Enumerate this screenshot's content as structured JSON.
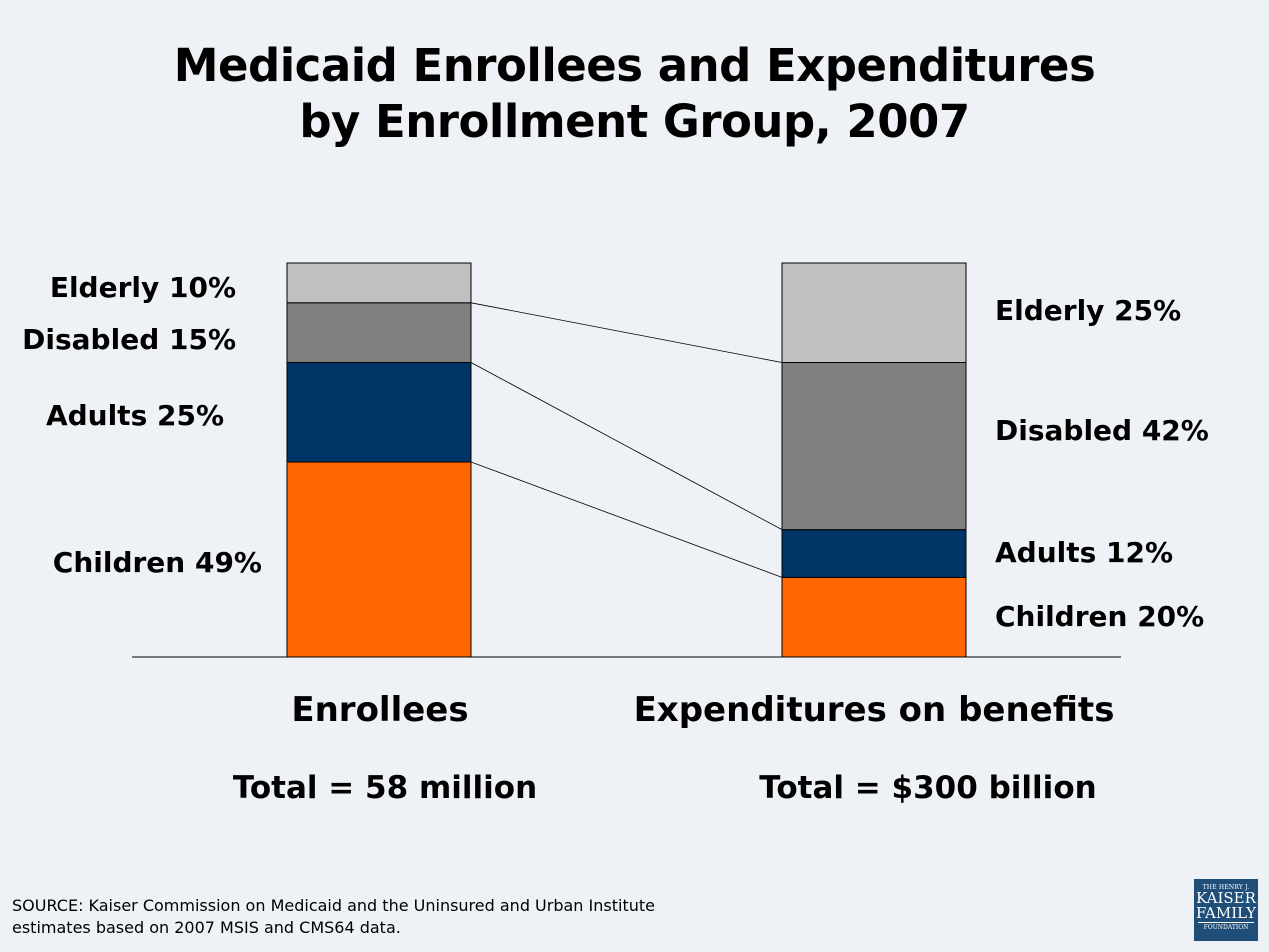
{
  "title_line1": "Medicaid Enrollees and Expenditures",
  "title_line2": "by Enrollment Group, 2007",
  "chart_data": {
    "type": "bar",
    "subtype": "stacked-100-percent",
    "title": "Medicaid Enrollees and Expenditures by Enrollment Group, 2007",
    "categories": [
      "Enrollees",
      "Expenditures on benefits"
    ],
    "stack_order_bottom_to_top": [
      "Children",
      "Adults",
      "Disabled",
      "Elderly"
    ],
    "series": [
      {
        "name": "Children",
        "values": [
          49,
          20
        ],
        "color": "#FF6600",
        "labels": [
          "Children 49%",
          "Children 20%"
        ]
      },
      {
        "name": "Adults",
        "values": [
          25,
          12
        ],
        "color": "#003366",
        "labels": [
          "Adults 25%",
          "Adults 12%"
        ]
      },
      {
        "name": "Disabled",
        "values": [
          15,
          42
        ],
        "color": "#808080",
        "labels": [
          "Disabled 15%",
          "Disabled 42%"
        ]
      },
      {
        "name": "Elderly",
        "values": [
          10,
          25
        ],
        "color": "#C0C0C0",
        "labels": [
          "Elderly 10%",
          "Elderly 25%"
        ]
      }
    ],
    "ylim": [
      0,
      100
    ],
    "unit": "%",
    "connector_lines": true,
    "totals": [
      "Total = 58 million",
      "Total = $300 billion"
    ],
    "xlabel": "",
    "ylabel": "",
    "grid": false,
    "legend": "none"
  },
  "source": {
    "line1": "SOURCE: Kaiser Commission on Medicaid and the Uninsured and Urban Institute",
    "line2": "estimates based on 2007 MSIS and CMS64 data."
  },
  "logo": {
    "line1": "THE HENRY J.",
    "line2": "KAISER",
    "line3": "FAMILY",
    "line4": "FOUNDATION",
    "color": "#1F4E79"
  }
}
